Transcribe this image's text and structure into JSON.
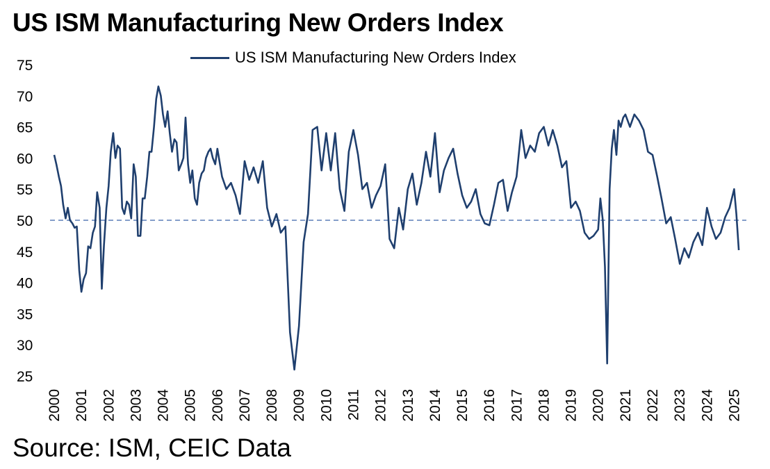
{
  "title": "US ISM Manufacturing New Orders Index",
  "source": "Source: ISM, CEIC Data",
  "colors": {
    "series": "#1f3f6e",
    "reference": "#5b7fb8"
  },
  "chart_data": {
    "type": "line",
    "title": "US ISM Manufacturing New Orders Index",
    "xlabel": "",
    "ylabel": "",
    "xlim": [
      2000,
      2025.5
    ],
    "ylim": [
      25,
      75
    ],
    "yticks": [
      "25",
      "30",
      "35",
      "40",
      "45",
      "50",
      "55",
      "60",
      "65",
      "70",
      "75"
    ],
    "xticks": [
      "2000",
      "2001",
      "2002",
      "2003",
      "2004",
      "2005",
      "2006",
      "2007",
      "2008",
      "2009",
      "2010",
      "2011",
      "2012",
      "2013",
      "2014",
      "2015",
      "2016",
      "2017",
      "2018",
      "2019",
      "2020",
      "2021",
      "2022",
      "2023",
      "2024",
      "2025"
    ],
    "legend_position": "top-center",
    "grid": false,
    "reference_line": {
      "y": 50,
      "style": "dashed"
    },
    "series": [
      {
        "name": "US ISM Manufacturing New Orders Index",
        "x": [
          2000.0,
          2000.08,
          2000.17,
          2000.25,
          2000.33,
          2000.42,
          2000.5,
          2000.58,
          2000.67,
          2000.75,
          2000.83,
          2000.92,
          2001.0,
          2001.08,
          2001.17,
          2001.25,
          2001.33,
          2001.42,
          2001.5,
          2001.58,
          2001.67,
          2001.75,
          2001.83,
          2001.92,
          2002.0,
          2002.08,
          2002.17,
          2002.25,
          2002.33,
          2002.42,
          2002.5,
          2002.58,
          2002.67,
          2002.75,
          2002.83,
          2002.92,
          2003.0,
          2003.08,
          2003.17,
          2003.25,
          2003.33,
          2003.42,
          2003.5,
          2003.58,
          2003.67,
          2003.75,
          2003.83,
          2003.92,
          2004.0,
          2004.08,
          2004.17,
          2004.25,
          2004.33,
          2004.42,
          2004.5,
          2004.58,
          2004.67,
          2004.75,
          2004.83,
          2004.92,
          2005.0,
          2005.08,
          2005.17,
          2005.25,
          2005.33,
          2005.42,
          2005.5,
          2005.58,
          2005.67,
          2005.75,
          2005.83,
          2005.92,
          2006.0,
          2006.17,
          2006.33,
          2006.5,
          2006.67,
          2006.83,
          2007.0,
          2007.17,
          2007.33,
          2007.5,
          2007.67,
          2007.83,
          2008.0,
          2008.17,
          2008.33,
          2008.5,
          2008.67,
          2008.83,
          2009.0,
          2009.17,
          2009.33,
          2009.5,
          2009.67,
          2009.83,
          2010.0,
          2010.17,
          2010.33,
          2010.5,
          2010.67,
          2010.83,
          2011.0,
          2011.17,
          2011.33,
          2011.5,
          2011.67,
          2011.83,
          2012.0,
          2012.17,
          2012.33,
          2012.5,
          2012.67,
          2012.83,
          2013.0,
          2013.17,
          2013.33,
          2013.5,
          2013.67,
          2013.83,
          2014.0,
          2014.17,
          2014.33,
          2014.5,
          2014.67,
          2014.83,
          2015.0,
          2015.17,
          2015.33,
          2015.5,
          2015.67,
          2015.83,
          2016.0,
          2016.17,
          2016.33,
          2016.5,
          2016.67,
          2016.83,
          2017.0,
          2017.17,
          2017.33,
          2017.5,
          2017.67,
          2017.83,
          2018.0,
          2018.17,
          2018.33,
          2018.5,
          2018.67,
          2018.83,
          2019.0,
          2019.17,
          2019.33,
          2019.5,
          2019.67,
          2019.83,
          2020.0,
          2020.08,
          2020.17,
          2020.25,
          2020.33,
          2020.42,
          2020.5,
          2020.58,
          2020.67,
          2020.75,
          2020.83,
          2020.92,
          2021.0,
          2021.17,
          2021.33,
          2021.5,
          2021.67,
          2021.83,
          2022.0,
          2022.17,
          2022.33,
          2022.5,
          2022.67,
          2022.83,
          2023.0,
          2023.17,
          2023.33,
          2023.5,
          2023.67,
          2023.83,
          2024.0,
          2024.17,
          2024.33,
          2024.5,
          2024.67,
          2024.83,
          2025.0,
          2025.08,
          2025.17
        ],
        "values": [
          60.5,
          59.0,
          57.0,
          55.5,
          52.5,
          50.3,
          52.0,
          50.0,
          49.5,
          48.8,
          49.0,
          42.0,
          38.5,
          40.5,
          41.5,
          45.8,
          45.5,
          48.0,
          49.0,
          54.5,
          52.0,
          39.0,
          46.0,
          52.0,
          55.5,
          61.0,
          64.0,
          60.0,
          62.0,
          61.5,
          52.0,
          51.0,
          53.0,
          52.5,
          50.3,
          59.0,
          57.0,
          47.5,
          47.5,
          53.5,
          53.5,
          57.0,
          61.0,
          61.0,
          65.0,
          69.5,
          71.5,
          70.0,
          67.0,
          65.0,
          67.5,
          64.0,
          61.0,
          63.0,
          62.5,
          58.0,
          59.0,
          60.0,
          66.5,
          59.0,
          56.0,
          58.0,
          53.5,
          52.5,
          56.0,
          57.5,
          58.0,
          60.0,
          61.0,
          61.5,
          60.0,
          59.0,
          61.5,
          57.0,
          55.0,
          56.0,
          54.0,
          51.0,
          59.5,
          56.5,
          58.5,
          56.0,
          59.5,
          52.0,
          49.0,
          51.0,
          48.0,
          49.0,
          32.0,
          26.0,
          33.0,
          46.5,
          51.0,
          64.5,
          65.0,
          58.0,
          64.0,
          58.0,
          64.0,
          55.0,
          51.5,
          61.0,
          64.5,
          60.5,
          55.0,
          56.0,
          52.0,
          54.0,
          55.5,
          59.0,
          47.0,
          45.5,
          52.0,
          48.5,
          55.0,
          57.5,
          52.5,
          56.0,
          61.0,
          57.0,
          64.0,
          54.5,
          58.0,
          60.0,
          61.5,
          57.5,
          54.0,
          52.0,
          53.0,
          55.0,
          51.0,
          49.5,
          49.2,
          52.5,
          56.0,
          56.5,
          51.5,
          54.5,
          57.0,
          64.5,
          60.0,
          62.0,
          61.0,
          64.0,
          65.0,
          62.0,
          64.5,
          62.0,
          58.5,
          59.5,
          52.0,
          53.0,
          51.5,
          48.0,
          47.0,
          47.5,
          48.5,
          53.5,
          50.0,
          42.5,
          27.0,
          55.0,
          61.5,
          64.5,
          60.5,
          66.0,
          65.0,
          66.5,
          67.0,
          65.0,
          67.0,
          66.0,
          64.5,
          61.0,
          60.5,
          57.0,
          53.5,
          49.5,
          50.5,
          47.0,
          43.0,
          45.5,
          44.0,
          46.5,
          48.0,
          46.0,
          52.0,
          49.0,
          47.0,
          48.0,
          50.5,
          52.0,
          55.0,
          51.0,
          45.2
        ]
      }
    ]
  }
}
